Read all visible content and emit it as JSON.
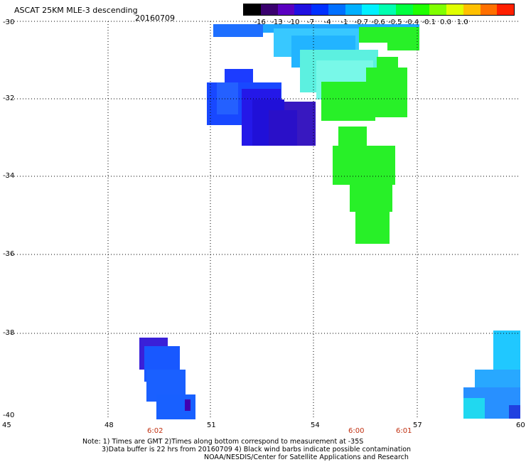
{
  "header": {
    "title": "ASCAT 25KM MLE-3 descending",
    "date": "20160709"
  },
  "colorbar": {
    "labels": [
      "-16",
      "-13",
      "-10",
      "-7",
      "-4",
      "-1",
      "-0.7",
      "-0.6",
      "-0.5",
      "-0.4",
      "-0.1",
      "0.0",
      "1.0"
    ],
    "colors": [
      "#000000",
      "#3a006e",
      "#5a00c0",
      "#2010e0",
      "#0030ff",
      "#0070ff",
      "#00b0ff",
      "#00f0ff",
      "#00ffb0",
      "#00ff40",
      "#20ff00",
      "#80ff00",
      "#e0ff00",
      "#ffc000",
      "#ff7000",
      "#ff2000"
    ]
  },
  "axes": {
    "y_labels": [
      "-30",
      "-32",
      "-34",
      "-36",
      "-38",
      "-40"
    ],
    "x_labels": [
      "45",
      "48",
      "51",
      "54",
      "57",
      "60"
    ]
  },
  "times": [
    {
      "label": "6:02"
    },
    {
      "label": "6:00"
    },
    {
      "label": "6:01"
    }
  ],
  "notes": {
    "line1": "Note: 1) Times are GMT 2)Times along bottom correspond to measurement at -35S",
    "line2": "3)Data buffer is 22 hrs from 20160709 4) Black wind barbs indicate possible contamination",
    "line3": "NOAA/NESDIS/Center for Satellite Applications and Research"
  }
}
